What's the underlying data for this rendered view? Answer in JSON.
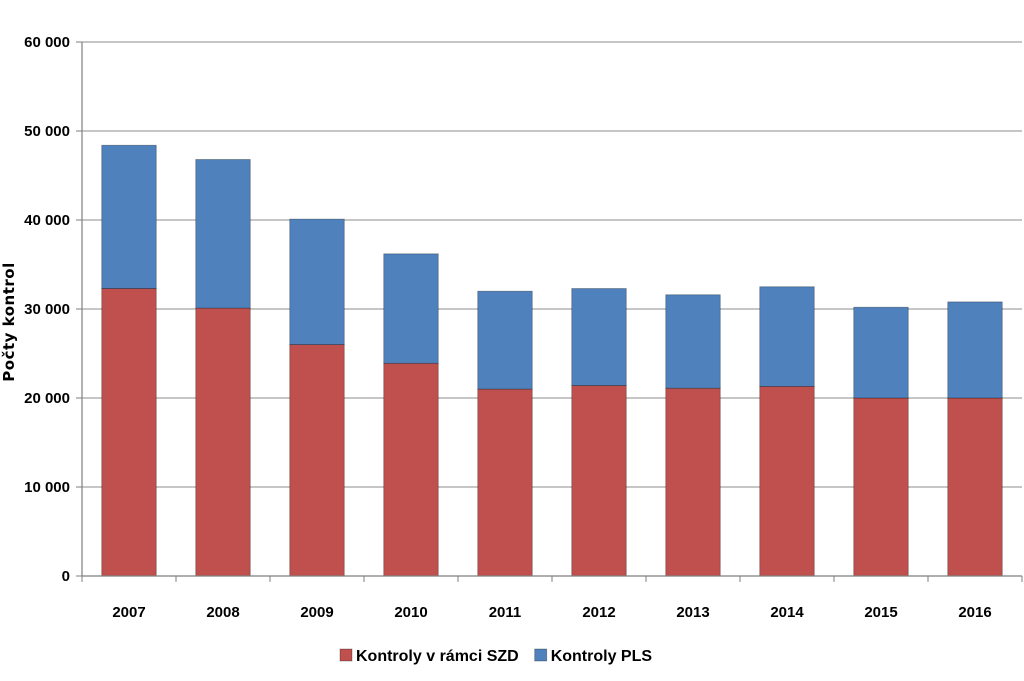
{
  "chart_data": {
    "type": "bar",
    "stacked": true,
    "categories": [
      "2007",
      "2008",
      "2009",
      "2010",
      "2011",
      "2012",
      "2013",
      "2014",
      "2015",
      "2016"
    ],
    "series": [
      {
        "name": "Kontroly v rámci SZD",
        "color": "#C0504D",
        "values": [
          32300,
          30100,
          26000,
          23900,
          21000,
          21400,
          21100,
          21300,
          20000,
          20000
        ]
      },
      {
        "name": "Kontroly PLS",
        "color": "#4F81BD",
        "values": [
          16100,
          16700,
          14100,
          12300,
          11000,
          10900,
          10500,
          11200,
          10200,
          10800
        ]
      }
    ],
    "ylabel": "Počty kontrol",
    "ylim": [
      0,
      60000
    ],
    "yticks": [
      0,
      10000,
      20000,
      30000,
      40000,
      50000,
      60000
    ],
    "ytick_labels": [
      "0",
      "10 000",
      "20 000",
      "30 000",
      "40 000",
      "50 000",
      "60 000"
    ],
    "grid": true,
    "legend": "bottom"
  }
}
